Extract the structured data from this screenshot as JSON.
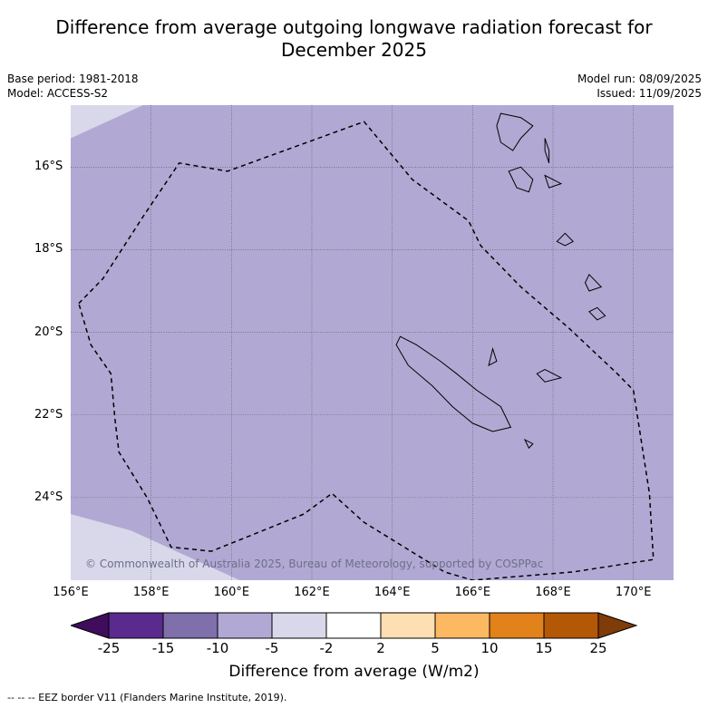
{
  "title_line1": "Difference from average outgoing longwave radiation forecast for",
  "title_line2": "December 2025",
  "base_period": "Base period: 1981-2018",
  "model": "Model: ACCESS-S2",
  "model_run": "Model run: 08/09/2025",
  "issued": "Issued: 11/09/2025",
  "copyright": "© Commonwealth of Australia 2025, Bureau of Meteorology, supported by COSPPac",
  "lat_labels": [
    "16°S",
    "18°S",
    "20°S",
    "22°S",
    "24°S"
  ],
  "lon_labels": [
    "156°E",
    "158°E",
    "160°E",
    "162°E",
    "164°E",
    "166°E",
    "168°E",
    "170°E"
  ],
  "colorbar": {
    "label": "Difference from average (W/m2)",
    "ticks": [
      "-25",
      "-15",
      "-10",
      "-5",
      "-2",
      "2",
      "5",
      "10",
      "15",
      "25"
    ],
    "colors": [
      "#3f0d5c",
      "#5a2a8e",
      "#7f6fab",
      "#b1a9d3",
      "#d8d8ea",
      "#ffffff",
      "#fedfb2",
      "#fdb862",
      "#e1821a",
      "#b35806",
      "#7f3b08"
    ]
  },
  "footer": "-- -- -- EEZ border V11 (Flanders Marine Institute, 2019).",
  "map": {
    "lon_range": [
      156,
      171
    ],
    "lat_range": [
      -26.0,
      -14.5
    ],
    "main_color": "#b1a9d3",
    "light_color": "#d8d8ea",
    "eez_border": [
      [
        156.2,
        -19.3
      ],
      [
        156.8,
        -18.7
      ],
      [
        157.8,
        -17.2
      ],
      [
        158.7,
        -15.9
      ],
      [
        159.9,
        -16.1
      ],
      [
        163.3,
        -14.9
      ],
      [
        164.5,
        -16.3
      ],
      [
        165.9,
        -17.3
      ],
      [
        166.2,
        -17.9
      ],
      [
        167.2,
        -18.9
      ],
      [
        168.4,
        -19.9
      ],
      [
        169.6,
        -21.0
      ],
      [
        170.0,
        -21.4
      ],
      [
        170.4,
        -23.9
      ],
      [
        170.5,
        -25.5
      ],
      [
        168.5,
        -25.8
      ],
      [
        166.0,
        -26.0
      ],
      [
        165.3,
        -25.8
      ],
      [
        163.3,
        -24.6
      ],
      [
        162.5,
        -23.9
      ],
      [
        161.8,
        -24.4
      ],
      [
        159.5,
        -25.3
      ],
      [
        158.5,
        -25.2
      ],
      [
        157.9,
        -24.0
      ],
      [
        157.2,
        -22.9
      ],
      [
        157.1,
        -22.1
      ],
      [
        157.0,
        -21.0
      ],
      [
        156.5,
        -20.3
      ],
      [
        156.2,
        -19.3
      ]
    ],
    "islands": [
      [
        [
          164.2,
          -20.1
        ],
        [
          164.6,
          -20.3
        ],
        [
          165.2,
          -20.7
        ],
        [
          165.6,
          -21.0
        ],
        [
          166.1,
          -21.4
        ],
        [
          166.7,
          -21.8
        ],
        [
          166.95,
          -22.3
        ],
        [
          166.5,
          -22.4
        ],
        [
          166.0,
          -22.2
        ],
        [
          165.5,
          -21.8
        ],
        [
          165.0,
          -21.3
        ],
        [
          164.4,
          -20.8
        ],
        [
          164.1,
          -20.3
        ]
      ],
      [
        [
          167.2,
          -14.8
        ],
        [
          167.5,
          -15.0
        ],
        [
          167.2,
          -15.3
        ],
        [
          167.0,
          -15.6
        ],
        [
          166.7,
          -15.4
        ],
        [
          166.6,
          -15.0
        ],
        [
          166.7,
          -14.7
        ]
      ],
      [
        [
          167.8,
          -15.3
        ],
        [
          167.9,
          -15.6
        ],
        [
          167.9,
          -15.9
        ],
        [
          167.8,
          -15.6
        ]
      ],
      [
        [
          167.2,
          -16.0
        ],
        [
          167.5,
          -16.3
        ],
        [
          167.4,
          -16.6
        ],
        [
          167.1,
          -16.5
        ],
        [
          166.9,
          -16.1
        ]
      ],
      [
        [
          168.3,
          -17.6
        ],
        [
          168.5,
          -17.8
        ],
        [
          168.3,
          -17.9
        ],
        [
          168.1,
          -17.8
        ]
      ],
      [
        [
          168.9,
          -18.6
        ],
        [
          169.2,
          -18.9
        ],
        [
          168.9,
          -19.0
        ],
        [
          168.8,
          -18.8
        ]
      ],
      [
        [
          169.1,
          -19.4
        ],
        [
          169.3,
          -19.6
        ],
        [
          169.1,
          -19.7
        ],
        [
          168.9,
          -19.5
        ]
      ],
      [
        [
          167.8,
          -20.9
        ],
        [
          168.2,
          -21.1
        ],
        [
          167.8,
          -21.2
        ],
        [
          167.6,
          -21.0
        ]
      ],
      [
        [
          166.5,
          -20.4
        ],
        [
          166.6,
          -20.7
        ],
        [
          166.4,
          -20.8
        ]
      ],
      [
        [
          167.3,
          -22.6
        ],
        [
          167.5,
          -22.7
        ],
        [
          167.4,
          -22.8
        ]
      ],
      [
        [
          167.8,
          -16.2
        ],
        [
          168.2,
          -16.4
        ],
        [
          167.9,
          -16.5
        ]
      ]
    ],
    "white_areas": [
      [
        [
          156.0,
          -14.5
        ],
        [
          157.8,
          -14.5
        ],
        [
          156.0,
          -15.3
        ]
      ],
      [
        [
          156.0,
          -24.4
        ],
        [
          157.5,
          -24.8
        ],
        [
          159.3,
          -25.6
        ],
        [
          160.2,
          -26.0
        ],
        [
          156.0,
          -26.0
        ]
      ]
    ]
  }
}
